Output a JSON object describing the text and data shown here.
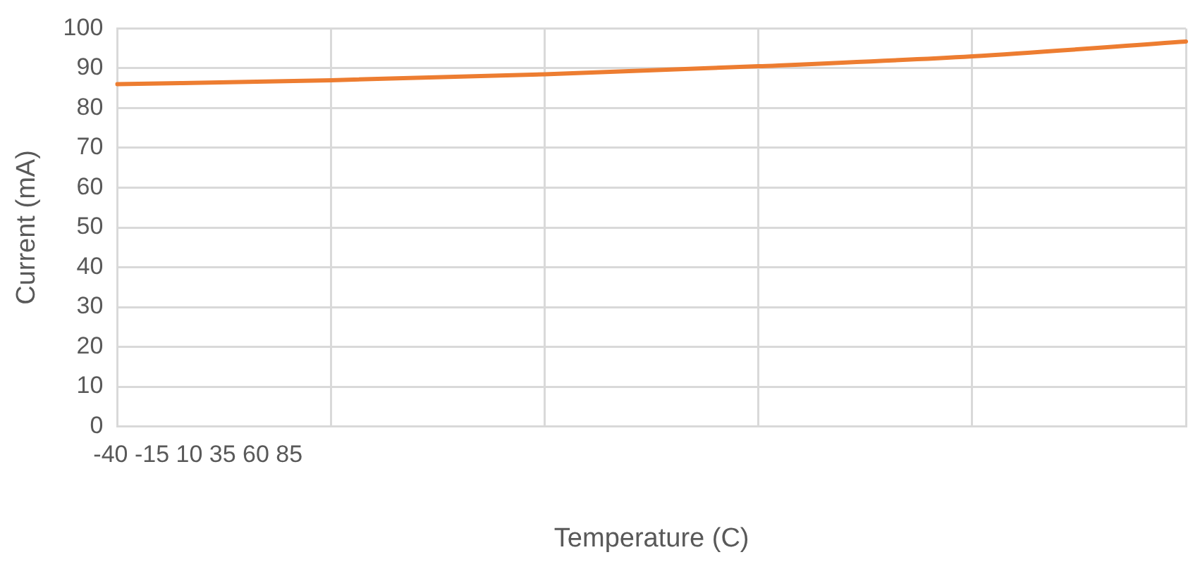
{
  "chart_data": {
    "type": "line",
    "xlabel": "Temperature (C)",
    "ylabel": "Current (mA)",
    "categories": [
      null,
      null,
      null,
      null,
      null,
      null
    ],
    "series": [
      {
        "color": "#ed7d31",
        "values": [
          86,
          87,
          88.5,
          90.5,
          93,
          96.7
        ]
      }
    ],
    "ylim": [
      0,
      100
    ],
    "yticks": [
      0,
      10,
      20,
      30,
      40,
      50,
      60,
      70,
      80,
      90,
      100
    ],
    "annotations": [
      "-40 -15 10 35 60 85"
    ],
    "grid": true,
    "legend": false,
    "marker": "none",
    "line_style": "solid"
  }
}
